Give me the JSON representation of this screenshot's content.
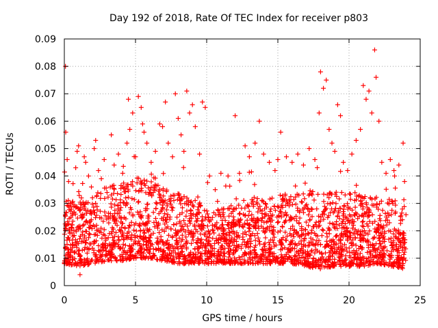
{
  "chart_data": {
    "type": "scatter",
    "title": "Day 192 of 2018, Rate Of TEC Index for receiver p803",
    "xlabel": "GPS time / hours",
    "ylabel": "ROTI / TECUs",
    "xlim": [
      0,
      25
    ],
    "ylim": [
      0,
      0.09
    ],
    "x_ticks": [
      0,
      5,
      10,
      15,
      20,
      25
    ],
    "x_tick_labels": [
      "0",
      "5",
      "10",
      "15",
      "20",
      "25"
    ],
    "y_ticks": [
      0,
      0.01,
      0.02,
      0.03,
      0.04,
      0.05,
      0.06,
      0.07,
      0.08,
      0.09
    ],
    "y_tick_labels": [
      "0",
      "0.01",
      "0.02",
      "0.03",
      "0.04",
      "0.05",
      "0.06",
      "0.07",
      "0.08",
      "0.09"
    ],
    "grid": true,
    "marker": "+",
    "color": "#ff0000",
    "series": [
      {
        "name": "ROTI",
        "points": [
          [
            0.08,
            0.08
          ],
          [
            0.1,
            0.056
          ],
          [
            0.2,
            0.046
          ],
          [
            0.3,
            0.038
          ],
          [
            0.4,
            0.03
          ],
          [
            0.5,
            0.021
          ],
          [
            0.6,
            0.015
          ],
          [
            0.7,
            0.012
          ],
          [
            0.8,
            0.043
          ],
          [
            0.9,
            0.049
          ],
          [
            1.0,
            0.051
          ],
          [
            1.1,
            0.004
          ],
          [
            1.2,
            0.032
          ],
          [
            1.3,
            0.025
          ],
          [
            1.4,
            0.047
          ],
          [
            1.5,
            0.045
          ],
          [
            1.7,
            0.04
          ],
          [
            1.9,
            0.036
          ],
          [
            2.1,
            0.05
          ],
          [
            2.2,
            0.053
          ],
          [
            2.4,
            0.042
          ],
          [
            2.6,
            0.039
          ],
          [
            2.8,
            0.046
          ],
          [
            3.0,
            0.034
          ],
          [
            3.3,
            0.055
          ],
          [
            3.5,
            0.044
          ],
          [
            3.8,
            0.048
          ],
          [
            4.1,
            0.041
          ],
          [
            4.4,
            0.052
          ],
          [
            4.5,
            0.068
          ],
          [
            4.6,
            0.057
          ],
          [
            4.8,
            0.063
          ],
          [
            5.0,
            0.047
          ],
          [
            5.2,
            0.069
          ],
          [
            5.4,
            0.065
          ],
          [
            5.5,
            0.059
          ],
          [
            5.6,
            0.056
          ],
          [
            5.8,
            0.052
          ],
          [
            6.1,
            0.045
          ],
          [
            6.4,
            0.049
          ],
          [
            6.7,
            0.059
          ],
          [
            6.9,
            0.058
          ],
          [
            7.1,
            0.067
          ],
          [
            7.3,
            0.052
          ],
          [
            7.6,
            0.047
          ],
          [
            7.8,
            0.07
          ],
          [
            8.0,
            0.061
          ],
          [
            8.2,
            0.055
          ],
          [
            8.4,
            0.049
          ],
          [
            8.6,
            0.071
          ],
          [
            8.8,
            0.063
          ],
          [
            9.0,
            0.066
          ],
          [
            9.2,
            0.058
          ],
          [
            9.5,
            0.048
          ],
          [
            9.7,
            0.067
          ],
          [
            9.9,
            0.065
          ],
          [
            10.2,
            0.04
          ],
          [
            10.6,
            0.035
          ],
          [
            11.0,
            0.041
          ],
          [
            11.5,
            0.04
          ],
          [
            12.0,
            0.062
          ],
          [
            12.3,
            0.041
          ],
          [
            12.7,
            0.051
          ],
          [
            13.0,
            0.047
          ],
          [
            13.4,
            0.052
          ],
          [
            13.7,
            0.06
          ],
          [
            14.0,
            0.048
          ],
          [
            14.4,
            0.045
          ],
          [
            14.8,
            0.042
          ],
          [
            15.0,
            0.046
          ],
          [
            15.2,
            0.056
          ],
          [
            15.6,
            0.047
          ],
          [
            16.0,
            0.045
          ],
          [
            16.4,
            0.048
          ],
          [
            16.8,
            0.044
          ],
          [
            17.2,
            0.05
          ],
          [
            17.6,
            0.046
          ],
          [
            17.9,
            0.063
          ],
          [
            18.0,
            0.078
          ],
          [
            18.2,
            0.072
          ],
          [
            18.4,
            0.075
          ],
          [
            18.6,
            0.057
          ],
          [
            18.8,
            0.052
          ],
          [
            19.0,
            0.049
          ],
          [
            19.2,
            0.066
          ],
          [
            19.4,
            0.062
          ],
          [
            19.6,
            0.045
          ],
          [
            19.9,
            0.042
          ],
          [
            20.2,
            0.048
          ],
          [
            20.5,
            0.053
          ],
          [
            20.8,
            0.057
          ],
          [
            21.0,
            0.073
          ],
          [
            21.2,
            0.068
          ],
          [
            21.4,
            0.071
          ],
          [
            21.6,
            0.063
          ],
          [
            21.8,
            0.086
          ],
          [
            21.9,
            0.076
          ],
          [
            22.1,
            0.06
          ],
          [
            22.3,
            0.045
          ],
          [
            22.6,
            0.041
          ],
          [
            22.9,
            0.046
          ],
          [
            23.2,
            0.04
          ],
          [
            23.5,
            0.044
          ],
          [
            23.8,
            0.052
          ],
          [
            23.9,
            0.038
          ]
        ]
      }
    ],
    "dense_band": {
      "description_values": "bulk of ROTI points per hour (min, typical upper)",
      "hours": [
        0,
        1,
        2,
        3,
        4,
        5,
        6,
        7,
        8,
        9,
        10,
        11,
        12,
        13,
        14,
        15,
        16,
        17,
        18,
        19,
        20,
        21,
        22,
        23,
        24
      ],
      "low": [
        0.008,
        0.007,
        0.008,
        0.009,
        0.009,
        0.01,
        0.01,
        0.009,
        0.008,
        0.008,
        0.008,
        0.008,
        0.008,
        0.008,
        0.008,
        0.008,
        0.008,
        0.007,
        0.006,
        0.007,
        0.007,
        0.007,
        0.008,
        0.007,
        0.006
      ],
      "high": [
        0.032,
        0.03,
        0.034,
        0.036,
        0.038,
        0.04,
        0.038,
        0.036,
        0.034,
        0.032,
        0.028,
        0.028,
        0.03,
        0.032,
        0.034,
        0.034,
        0.033,
        0.034,
        0.036,
        0.036,
        0.034,
        0.034,
        0.032,
        0.032,
        0.03
      ]
    }
  }
}
